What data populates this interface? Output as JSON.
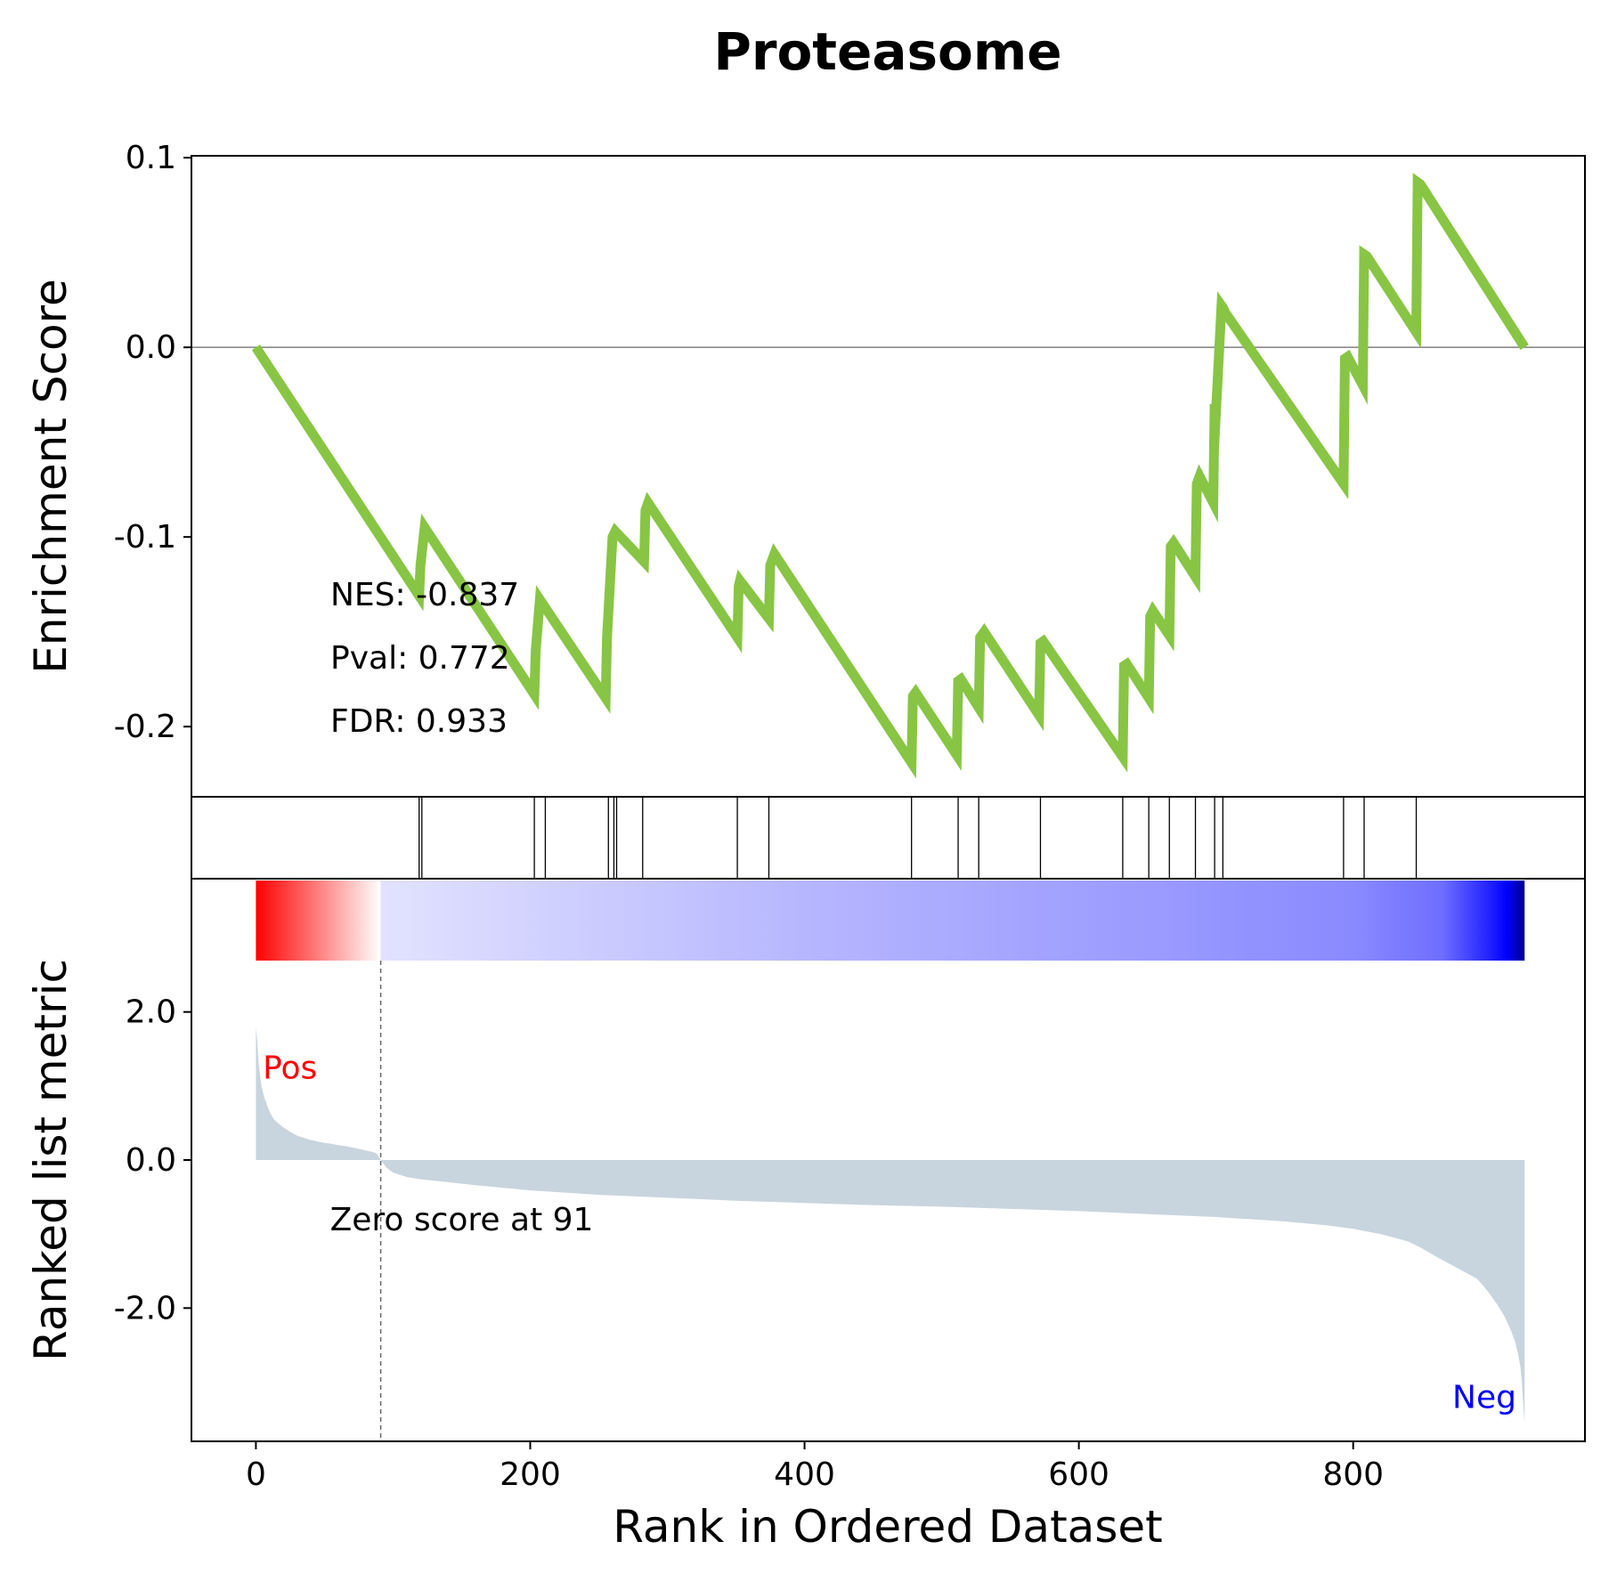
{
  "chart_data": {
    "type": "line",
    "title": "Proteasome",
    "xlabel": "Rank in Ordered Dataset",
    "xlim": [
      -47,
      969
    ],
    "xticks": [
      0,
      200,
      400,
      600,
      800
    ],
    "xtick_labels": [
      "0",
      "200",
      "400",
      "600",
      "800"
    ],
    "enrichment": {
      "ylabel": "Enrichment Score",
      "ylim": [
        -0.237,
        0.101
      ],
      "yticks": [
        0.1,
        0.0,
        -0.1,
        -0.2
      ],
      "ytick_labels": [
        "0.1",
        "0.0",
        "-0.1",
        "-0.2"
      ],
      "color": "#88c544",
      "zero_line": true,
      "series": [
        {
          "x": [
            0,
            119,
            120,
            123,
            203,
            204,
            207,
            255,
            256,
            260,
            262,
            283,
            284,
            286,
            351,
            352,
            353,
            374,
            375,
            378,
            478,
            479,
            481,
            511,
            512,
            514,
            527,
            528,
            531,
            571,
            572,
            574,
            632,
            633,
            635,
            651,
            652,
            654,
            666,
            667,
            669,
            685,
            686,
            688,
            698,
            699,
            700,
            704,
            705,
            707,
            793,
            794,
            796,
            807,
            808,
            810,
            846,
            847,
            849,
            925
          ],
          "y": [
            0.0,
            -0.131,
            -0.115,
            -0.095,
            -0.183,
            -0.16,
            -0.133,
            -0.185,
            -0.153,
            -0.1,
            -0.097,
            -0.113,
            -0.086,
            -0.082,
            -0.153,
            -0.126,
            -0.123,
            -0.143,
            -0.115,
            -0.109,
            -0.219,
            -0.184,
            -0.182,
            -0.215,
            -0.176,
            -0.175,
            -0.19,
            -0.153,
            -0.15,
            -0.194,
            -0.156,
            -0.155,
            -0.216,
            -0.168,
            -0.167,
            -0.185,
            -0.142,
            -0.139,
            -0.152,
            -0.105,
            -0.103,
            -0.121,
            -0.072,
            -0.068,
            -0.082,
            -0.03,
            -0.034,
            0.022,
            0.021,
            0.018,
            -0.072,
            -0.006,
            -0.005,
            -0.02,
            0.049,
            0.048,
            0.008,
            0.087,
            0.086,
            0.0
          ]
        }
      ],
      "annotations": [
        "NES: -0.837",
        "Pval: 0.772",
        "FDR: 0.933"
      ]
    },
    "hits": [
      119,
      121,
      203,
      211,
      257,
      261,
      263,
      282,
      351,
      374,
      478,
      512,
      527,
      572,
      632,
      651,
      666,
      685,
      699,
      705,
      793,
      808,
      846
    ],
    "ranked": {
      "ylabel": "Ranked list metric",
      "ylim": [
        -3.8,
        3.8
      ],
      "yticks": [
        2.0,
        0.0,
        -2.0
      ],
      "ytick_labels": [
        "2.0",
        "0.0",
        "-2.0"
      ],
      "fill_color": "#c8d4de",
      "x": [
        0,
        1,
        2,
        4,
        6,
        8,
        10,
        13,
        16,
        20,
        25,
        30,
        35,
        40,
        45,
        50,
        55,
        60,
        65,
        70,
        75,
        80,
        85,
        88,
        91,
        95,
        100,
        110,
        120,
        140,
        160,
        200,
        250,
        300,
        350,
        400,
        450,
        500,
        550,
        600,
        650,
        700,
        750,
        780,
        800,
        820,
        830,
        840,
        850,
        860,
        870,
        880,
        890,
        895,
        900,
        905,
        910,
        915,
        918,
        920,
        922,
        923,
        924,
        925
      ],
      "y": [
        1.8,
        1.6,
        1.3,
        1.0,
        0.85,
        0.75,
        0.65,
        0.55,
        0.5,
        0.44,
        0.38,
        0.33,
        0.3,
        0.27,
        0.25,
        0.23,
        0.22,
        0.2,
        0.19,
        0.17,
        0.15,
        0.13,
        0.11,
        0.09,
        0.0,
        -0.1,
        -0.17,
        -0.23,
        -0.26,
        -0.3,
        -0.34,
        -0.41,
        -0.47,
        -0.51,
        -0.55,
        -0.58,
        -0.61,
        -0.63,
        -0.66,
        -0.69,
        -0.73,
        -0.77,
        -0.83,
        -0.88,
        -0.93,
        -1.0,
        -1.05,
        -1.1,
        -1.19,
        -1.3,
        -1.4,
        -1.5,
        -1.6,
        -1.7,
        -1.82,
        -1.95,
        -2.1,
        -2.3,
        -2.45,
        -2.6,
        -2.8,
        -3.0,
        -3.3,
        -3.55
      ],
      "colorbar": {
        "stops": [
          {
            "x": 0,
            "color": "#ff0000"
          },
          {
            "x": 91,
            "color": "#ffffff"
          },
          {
            "x": 91,
            "color": "#e2e2ff"
          },
          {
            "x": 400,
            "color": "#b6b6ff"
          },
          {
            "x": 800,
            "color": "#8a8aff"
          },
          {
            "x": 865,
            "color": "#6e6eff"
          },
          {
            "x": 900,
            "color": "#2020ff"
          },
          {
            "x": 912,
            "color": "#0000ff"
          },
          {
            "x": 925,
            "color": "#00008b"
          }
        ]
      },
      "zero_cross": 91,
      "zero_label": "Zero score at 91",
      "pos_label": "Pos",
      "pos_color": "#ff0000",
      "neg_label": "Neg",
      "neg_color": "#0000ff"
    }
  }
}
